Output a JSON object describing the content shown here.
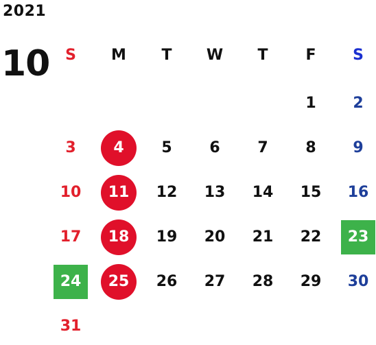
{
  "year": "2021",
  "month": "10",
  "weekday_headers": [
    "S",
    "M",
    "T",
    "W",
    "T",
    "F",
    "S"
  ],
  "colors": {
    "sunday": "#e2202c",
    "saturday": "#1e3f9a",
    "saturday_header": "#1a2fd0",
    "weekday": "#111111",
    "holiday_circle": "#e0102a",
    "holiday_square": "#3db24a"
  },
  "weeks": [
    [
      {
        "day": "",
        "style": "sun"
      },
      {
        "day": "",
        "style": "weekday"
      },
      {
        "day": "",
        "style": "weekday"
      },
      {
        "day": "",
        "style": "weekday"
      },
      {
        "day": "",
        "style": "weekday"
      },
      {
        "day": "1",
        "style": "weekday"
      },
      {
        "day": "2",
        "style": "sat"
      }
    ],
    [
      {
        "day": "3",
        "style": "sun"
      },
      {
        "day": "4",
        "style": "circle"
      },
      {
        "day": "5",
        "style": "weekday"
      },
      {
        "day": "6",
        "style": "weekday"
      },
      {
        "day": "7",
        "style": "weekday"
      },
      {
        "day": "8",
        "style": "weekday"
      },
      {
        "day": "9",
        "style": "sat"
      }
    ],
    [
      {
        "day": "10",
        "style": "sun"
      },
      {
        "day": "11",
        "style": "circle"
      },
      {
        "day": "12",
        "style": "weekday"
      },
      {
        "day": "13",
        "style": "weekday"
      },
      {
        "day": "14",
        "style": "weekday"
      },
      {
        "day": "15",
        "style": "weekday"
      },
      {
        "day": "16",
        "style": "sat"
      }
    ],
    [
      {
        "day": "17",
        "style": "sun"
      },
      {
        "day": "18",
        "style": "circle"
      },
      {
        "day": "19",
        "style": "weekday"
      },
      {
        "day": "20",
        "style": "weekday"
      },
      {
        "day": "21",
        "style": "weekday"
      },
      {
        "day": "22",
        "style": "weekday"
      },
      {
        "day": "23",
        "style": "square"
      }
    ],
    [
      {
        "day": "24",
        "style": "square"
      },
      {
        "day": "25",
        "style": "circle"
      },
      {
        "day": "26",
        "style": "weekday"
      },
      {
        "day": "27",
        "style": "weekday"
      },
      {
        "day": "28",
        "style": "weekday"
      },
      {
        "day": "29",
        "style": "weekday"
      },
      {
        "day": "30",
        "style": "sat"
      }
    ],
    [
      {
        "day": "31",
        "style": "sun"
      },
      {
        "day": "",
        "style": "weekday"
      },
      {
        "day": "",
        "style": "weekday"
      },
      {
        "day": "",
        "style": "weekday"
      },
      {
        "day": "",
        "style": "weekday"
      },
      {
        "day": "",
        "style": "weekday"
      },
      {
        "day": "",
        "style": "sat"
      }
    ]
  ]
}
